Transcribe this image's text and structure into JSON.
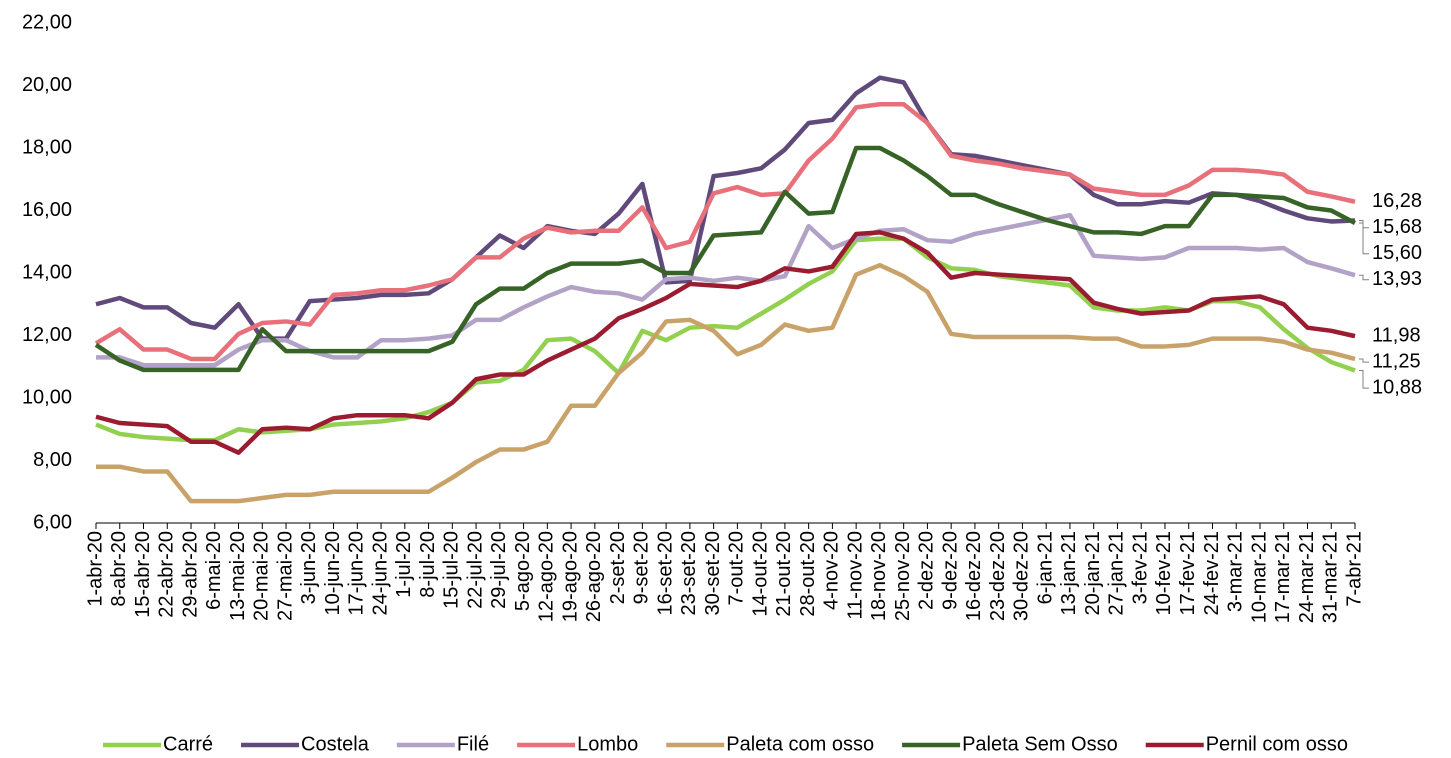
{
  "chart_data": {
    "type": "line",
    "categories": [
      "1-abr-20",
      "8-abr-20",
      "15-abr-20",
      "22-abr-20",
      "29-abr-20",
      "6-mai-20",
      "13-mai-20",
      "20-mai-20",
      "27-mai-20",
      "3-jun-20",
      "10-jun-20",
      "17-jun-20",
      "24-jun-20",
      "1-jul-20",
      "8-jul-20",
      "15-jul-20",
      "22-jul-20",
      "29-jul-20",
      "5-ago-20",
      "12-ago-20",
      "19-ago-20",
      "26-ago-20",
      "2-set-20",
      "9-set-20",
      "16-set-20",
      "23-set-20",
      "30-set-20",
      "7-out-20",
      "14-out-20",
      "21-out-20",
      "28-out-20",
      "4-nov-20",
      "11-nov-20",
      "18-nov-20",
      "25-nov-20",
      "2-dez-20",
      "9-dez-20",
      "16-dez-20",
      "23-dez-20",
      "30-dez-20",
      "6-jan-21",
      "13-jan-21",
      "20-jan-21",
      "27-jan-21",
      "3-fev-21",
      "10-fev-21",
      "17-fev-21",
      "24-fev-21",
      "3-mar-21",
      "10-mar-21",
      "17-mar-21",
      "24-mar-21",
      "31-mar-21",
      "7-abr-21"
    ],
    "series": [
      {
        "name": "Carré",
        "color": "#92d050",
        "values": [
          9.15,
          8.85,
          8.75,
          8.7,
          8.65,
          8.65,
          9.0,
          8.9,
          8.95,
          9.0,
          9.15,
          9.2,
          9.25,
          9.35,
          9.55,
          9.85,
          10.5,
          10.55,
          10.9,
          11.85,
          11.9,
          11.5,
          10.8,
          12.15,
          11.85,
          12.25,
          12.3,
          12.25,
          12.7,
          13.15,
          13.65,
          14.05,
          15.05,
          15.1,
          15.1,
          14.5,
          14.15,
          14.1,
          13.9,
          13.8,
          13.7,
          13.6,
          12.9,
          12.8,
          12.8,
          12.9,
          12.8,
          13.1,
          13.1,
          12.9,
          12.2,
          11.6,
          11.15,
          10.88
        ],
        "value_labels": [
          null,
          null,
          null,
          null,
          null,
          null,
          null,
          null,
          null,
          null,
          null,
          null,
          null,
          null,
          null,
          null,
          null,
          null,
          null,
          null,
          null,
          null,
          null,
          null,
          null,
          null,
          null,
          null,
          null,
          null,
          null,
          null,
          null,
          null,
          null,
          null,
          null,
          null,
          null,
          null,
          null,
          null,
          null,
          null,
          null,
          null,
          null,
          null,
          null,
          null,
          null,
          null,
          null,
          "10,88"
        ]
      },
      {
        "name": "Costela",
        "color": "#604a7b",
        "values": [
          13.0,
          13.2,
          12.9,
          12.9,
          12.4,
          12.25,
          13.0,
          11.9,
          11.9,
          13.1,
          13.15,
          13.2,
          13.3,
          13.3,
          13.35,
          13.8,
          14.5,
          15.2,
          14.8,
          15.5,
          15.35,
          15.25,
          15.9,
          16.85,
          13.7,
          13.75,
          17.1,
          17.2,
          17.35,
          17.95,
          18.8,
          18.9,
          19.75,
          20.25,
          20.1,
          18.8,
          17.8,
          17.75,
          17.6,
          17.45,
          17.3,
          17.15,
          16.5,
          16.2,
          16.2,
          16.3,
          16.25,
          16.55,
          16.5,
          16.3,
          16.0,
          15.75,
          15.65,
          15.68
        ],
        "value_labels": [
          null,
          null,
          null,
          null,
          null,
          null,
          null,
          null,
          null,
          null,
          null,
          null,
          null,
          null,
          null,
          null,
          null,
          null,
          null,
          null,
          null,
          null,
          null,
          null,
          null,
          null,
          null,
          null,
          null,
          null,
          null,
          null,
          null,
          null,
          null,
          null,
          null,
          null,
          null,
          null,
          null,
          null,
          null,
          null,
          null,
          null,
          null,
          null,
          null,
          null,
          null,
          null,
          null,
          "15,68"
        ]
      },
      {
        "name": "Filé",
        "color": "#b3a2c7",
        "values": [
          11.3,
          11.3,
          11.05,
          11.05,
          11.05,
          11.05,
          11.55,
          11.85,
          11.85,
          11.5,
          11.3,
          11.3,
          11.85,
          11.85,
          11.9,
          12.0,
          12.5,
          12.5,
          12.9,
          13.25,
          13.55,
          13.4,
          13.35,
          13.15,
          13.8,
          13.85,
          13.75,
          13.85,
          13.75,
          13.9,
          15.5,
          14.8,
          15.1,
          15.35,
          15.4,
          15.05,
          15.0,
          15.25,
          15.4,
          15.55,
          15.7,
          15.85,
          14.55,
          14.5,
          14.45,
          14.5,
          14.8,
          14.8,
          14.8,
          14.75,
          14.8,
          14.35,
          14.15,
          13.93
        ],
        "value_labels": [
          null,
          null,
          null,
          null,
          null,
          null,
          null,
          null,
          null,
          null,
          null,
          null,
          null,
          null,
          null,
          null,
          null,
          null,
          null,
          null,
          null,
          null,
          null,
          null,
          null,
          null,
          null,
          null,
          null,
          null,
          null,
          null,
          null,
          null,
          null,
          null,
          null,
          null,
          null,
          null,
          null,
          null,
          null,
          null,
          null,
          null,
          null,
          null,
          null,
          null,
          null,
          null,
          null,
          "13,93"
        ]
      },
      {
        "name": "Lombo",
        "color": "#e8707a",
        "values": [
          11.75,
          12.2,
          11.55,
          11.55,
          11.25,
          11.25,
          12.05,
          12.4,
          12.45,
          12.35,
          13.3,
          13.35,
          13.45,
          13.45,
          13.6,
          13.8,
          14.5,
          14.5,
          15.1,
          15.45,
          15.3,
          15.35,
          15.35,
          16.1,
          14.8,
          15.0,
          16.55,
          16.75,
          16.5,
          16.55,
          17.6,
          18.3,
          19.3,
          19.4,
          19.4,
          18.8,
          17.75,
          17.6,
          17.5,
          17.35,
          17.25,
          17.15,
          16.7,
          16.6,
          16.5,
          16.5,
          16.8,
          17.3,
          17.3,
          17.25,
          17.15,
          16.6,
          16.45,
          16.28
        ],
        "value_labels": [
          null,
          null,
          null,
          null,
          null,
          null,
          null,
          null,
          null,
          null,
          null,
          null,
          null,
          null,
          null,
          null,
          null,
          null,
          null,
          null,
          null,
          null,
          null,
          null,
          null,
          null,
          null,
          null,
          null,
          null,
          null,
          null,
          null,
          null,
          null,
          null,
          null,
          null,
          null,
          null,
          null,
          null,
          null,
          null,
          null,
          null,
          null,
          null,
          null,
          null,
          null,
          null,
          null,
          "16,28"
        ]
      },
      {
        "name": "Paleta com osso",
        "color": "#c9a26a",
        "values": [
          7.8,
          7.8,
          7.65,
          7.65,
          6.7,
          6.7,
          6.7,
          6.8,
          6.9,
          6.9,
          7.0,
          7.0,
          7.0,
          7.0,
          7.0,
          7.45,
          7.95,
          8.35,
          8.35,
          8.6,
          9.75,
          9.75,
          10.8,
          11.45,
          12.45,
          12.5,
          12.15,
          11.4,
          11.7,
          12.35,
          12.15,
          12.25,
          13.95,
          14.25,
          13.9,
          13.4,
          12.05,
          11.95,
          11.95,
          11.95,
          11.95,
          11.95,
          11.9,
          11.9,
          11.65,
          11.65,
          11.7,
          11.9,
          11.9,
          11.9,
          11.8,
          11.55,
          11.45,
          11.25
        ],
        "value_labels": [
          null,
          null,
          null,
          null,
          null,
          null,
          null,
          null,
          null,
          null,
          null,
          null,
          null,
          null,
          null,
          null,
          null,
          null,
          null,
          null,
          null,
          null,
          null,
          null,
          null,
          null,
          null,
          null,
          null,
          null,
          null,
          null,
          null,
          null,
          null,
          null,
          null,
          null,
          null,
          null,
          null,
          null,
          null,
          null,
          null,
          null,
          null,
          null,
          null,
          null,
          null,
          null,
          null,
          "11,25"
        ]
      },
      {
        "name": "Paleta Sem Osso",
        "color": "#376327",
        "values": [
          11.7,
          11.2,
          10.9,
          10.9,
          10.9,
          10.9,
          10.9,
          12.2,
          11.5,
          11.5,
          11.5,
          11.5,
          11.5,
          11.5,
          11.5,
          11.8,
          13.0,
          13.5,
          13.5,
          14.0,
          14.3,
          14.3,
          14.3,
          14.4,
          14.0,
          14.0,
          15.2,
          15.25,
          15.3,
          16.6,
          15.9,
          15.95,
          18.0,
          18.0,
          17.6,
          17.1,
          16.5,
          16.5,
          16.2,
          15.95,
          15.7,
          15.5,
          15.3,
          15.3,
          15.25,
          15.5,
          15.5,
          16.5,
          16.5,
          16.45,
          16.4,
          16.1,
          16.0,
          15.6
        ],
        "value_labels": [
          null,
          null,
          null,
          null,
          null,
          null,
          null,
          null,
          null,
          null,
          null,
          null,
          null,
          null,
          null,
          null,
          null,
          null,
          null,
          null,
          null,
          null,
          null,
          null,
          null,
          null,
          null,
          null,
          null,
          null,
          null,
          null,
          null,
          null,
          null,
          null,
          null,
          null,
          null,
          null,
          null,
          null,
          null,
          null,
          null,
          null,
          null,
          null,
          null,
          null,
          null,
          null,
          null,
          "15,60"
        ]
      },
      {
        "name": "Pernil com osso",
        "color": "#9b1b30",
        "values": [
          9.4,
          9.2,
          9.15,
          9.1,
          8.6,
          8.6,
          8.25,
          9.0,
          9.05,
          9.0,
          9.35,
          9.45,
          9.45,
          9.45,
          9.35,
          9.85,
          10.6,
          10.75,
          10.75,
          11.2,
          11.55,
          11.9,
          12.55,
          12.85,
          13.2,
          13.65,
          13.6,
          13.55,
          13.75,
          14.15,
          14.05,
          14.2,
          15.25,
          15.3,
          15.1,
          14.65,
          13.85,
          14.0,
          13.95,
          13.9,
          13.85,
          13.8,
          13.05,
          12.85,
          12.7,
          12.75,
          12.8,
          13.15,
          13.2,
          13.25,
          13.0,
          12.25,
          12.15,
          11.98
        ],
        "value_labels": [
          null,
          null,
          null,
          null,
          null,
          null,
          null,
          null,
          null,
          null,
          null,
          null,
          null,
          null,
          null,
          null,
          null,
          null,
          null,
          null,
          null,
          null,
          null,
          null,
          null,
          null,
          null,
          null,
          null,
          null,
          null,
          null,
          null,
          null,
          null,
          null,
          null,
          null,
          null,
          null,
          null,
          null,
          null,
          null,
          null,
          null,
          null,
          null,
          null,
          null,
          null,
          null,
          null,
          "11,98"
        ]
      }
    ],
    "ylim": [
      6,
      22
    ],
    "yticks": [
      {
        "value": 6,
        "label": "6,00"
      },
      {
        "value": 8,
        "label": "8,00"
      },
      {
        "value": 10,
        "label": "10,00"
      },
      {
        "value": 12,
        "label": "12,00"
      },
      {
        "value": 14,
        "label": "14,00"
      },
      {
        "value": 16,
        "label": "16,00"
      },
      {
        "value": 18,
        "label": "18,00"
      },
      {
        "value": 20,
        "label": "20,00"
      },
      {
        "value": 22,
        "label": "22,00"
      }
    ],
    "grid": false,
    "legend": "bottom"
  }
}
